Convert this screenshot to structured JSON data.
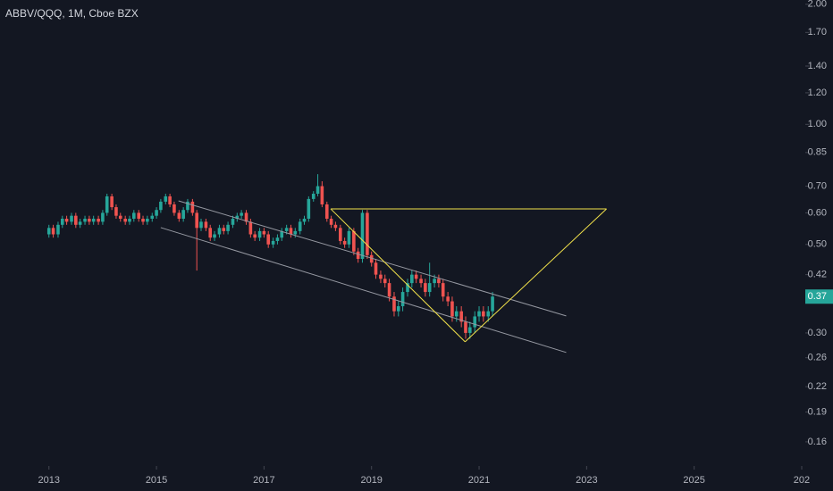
{
  "chart_data": {
    "type": "candlestick",
    "title": "ABBV/QQQ, 1M, Cboe BZX",
    "log_scale": true,
    "grid": false,
    "up_color": "#26a69a",
    "down_color": "#ef5350",
    "x": [
      2013.0,
      2013.08,
      2013.17,
      2013.25,
      2013.33,
      2013.42,
      2013.5,
      2013.58,
      2013.67,
      2013.75,
      2013.83,
      2013.92,
      2014.0,
      2014.08,
      2014.17,
      2014.25,
      2014.33,
      2014.42,
      2014.5,
      2014.58,
      2014.67,
      2014.75,
      2014.83,
      2014.92,
      2015.0,
      2015.08,
      2015.17,
      2015.25,
      2015.33,
      2015.42,
      2015.5,
      2015.58,
      2015.67,
      2015.75,
      2015.83,
      2015.92,
      2016.0,
      2016.08,
      2016.17,
      2016.25,
      2016.33,
      2016.42,
      2016.5,
      2016.58,
      2016.67,
      2016.75,
      2016.83,
      2016.92,
      2017.0,
      2017.08,
      2017.17,
      2017.25,
      2017.33,
      2017.42,
      2017.5,
      2017.58,
      2017.67,
      2017.75,
      2017.83,
      2017.92,
      2018.0,
      2018.08,
      2018.17,
      2018.25,
      2018.33,
      2018.42,
      2018.5,
      2018.58,
      2018.67,
      2018.75,
      2018.83,
      2018.92,
      2019.0,
      2019.08,
      2019.17,
      2019.25,
      2019.33,
      2019.42,
      2019.5,
      2019.58,
      2019.67,
      2019.75,
      2019.83,
      2019.92,
      2020.0,
      2020.08,
      2020.17,
      2020.25,
      2020.33,
      2020.42,
      2020.5,
      2020.58,
      2020.67,
      2020.75,
      2020.83,
      2020.92,
      2021.0,
      2021.08,
      2021.17,
      2021.25
    ],
    "open": [
      0.53,
      0.55,
      0.53,
      0.56,
      0.58,
      0.57,
      0.59,
      0.56,
      0.57,
      0.58,
      0.57,
      0.58,
      0.57,
      0.6,
      0.66,
      0.62,
      0.59,
      0.58,
      0.57,
      0.58,
      0.6,
      0.58,
      0.57,
      0.58,
      0.59,
      0.61,
      0.64,
      0.66,
      0.63,
      0.6,
      0.58,
      0.61,
      0.64,
      0.6,
      0.55,
      0.57,
      0.55,
      0.52,
      0.53,
      0.55,
      0.54,
      0.56,
      0.58,
      0.59,
      0.6,
      0.57,
      0.53,
      0.52,
      0.54,
      0.53,
      0.5,
      0.51,
      0.52,
      0.54,
      0.55,
      0.53,
      0.54,
      0.57,
      0.58,
      0.65,
      0.67,
      0.7,
      0.63,
      0.58,
      0.56,
      0.55,
      0.51,
      0.5,
      0.54,
      0.48,
      0.46,
      0.6,
      0.47,
      0.45,
      0.42,
      0.41,
      0.4,
      0.37,
      0.34,
      0.35,
      0.38,
      0.4,
      0.42,
      0.41,
      0.4,
      0.38,
      0.4,
      0.41,
      0.4,
      0.37,
      0.36,
      0.33,
      0.34,
      0.32,
      0.3,
      0.31,
      0.33,
      0.34,
      0.33,
      0.34
    ],
    "high": [
      0.56,
      0.56,
      0.57,
      0.59,
      0.59,
      0.6,
      0.6,
      0.58,
      0.59,
      0.59,
      0.59,
      0.59,
      0.61,
      0.67,
      0.67,
      0.63,
      0.6,
      0.59,
      0.59,
      0.61,
      0.61,
      0.59,
      0.59,
      0.6,
      0.62,
      0.65,
      0.67,
      0.67,
      0.64,
      0.61,
      0.62,
      0.65,
      0.65,
      0.61,
      0.58,
      0.58,
      0.56,
      0.54,
      0.56,
      0.56,
      0.57,
      0.59,
      0.6,
      0.61,
      0.61,
      0.58,
      0.54,
      0.55,
      0.55,
      0.54,
      0.52,
      0.53,
      0.55,
      0.56,
      0.56,
      0.55,
      0.58,
      0.59,
      0.66,
      0.68,
      0.75,
      0.72,
      0.64,
      0.59,
      0.57,
      0.56,
      0.52,
      0.55,
      0.55,
      0.49,
      0.61,
      0.61,
      0.48,
      0.46,
      0.43,
      0.42,
      0.41,
      0.38,
      0.36,
      0.39,
      0.41,
      0.43,
      0.43,
      0.42,
      0.41,
      0.45,
      0.42,
      0.42,
      0.41,
      0.38,
      0.37,
      0.35,
      0.35,
      0.33,
      0.32,
      0.34,
      0.35,
      0.35,
      0.35,
      0.38
    ],
    "low": [
      0.52,
      0.52,
      0.52,
      0.55,
      0.56,
      0.56,
      0.55,
      0.55,
      0.56,
      0.56,
      0.56,
      0.56,
      0.56,
      0.59,
      0.61,
      0.58,
      0.57,
      0.56,
      0.56,
      0.57,
      0.57,
      0.56,
      0.56,
      0.57,
      0.58,
      0.6,
      0.63,
      0.62,
      0.59,
      0.57,
      0.57,
      0.6,
      0.59,
      0.43,
      0.54,
      0.54,
      0.51,
      0.51,
      0.52,
      0.53,
      0.53,
      0.55,
      0.57,
      0.58,
      0.56,
      0.52,
      0.51,
      0.51,
      0.52,
      0.49,
      0.49,
      0.5,
      0.51,
      0.53,
      0.52,
      0.52,
      0.53,
      0.56,
      0.57,
      0.64,
      0.66,
      0.62,
      0.57,
      0.55,
      0.54,
      0.5,
      0.49,
      0.49,
      0.47,
      0.45,
      0.45,
      0.46,
      0.44,
      0.41,
      0.4,
      0.39,
      0.36,
      0.33,
      0.33,
      0.34,
      0.37,
      0.39,
      0.4,
      0.39,
      0.37,
      0.37,
      0.39,
      0.39,
      0.36,
      0.35,
      0.32,
      0.32,
      0.31,
      0.29,
      0.29,
      0.3,
      0.32,
      0.32,
      0.32,
      0.33
    ],
    "close": [
      0.55,
      0.53,
      0.56,
      0.58,
      0.57,
      0.59,
      0.56,
      0.57,
      0.58,
      0.57,
      0.58,
      0.57,
      0.6,
      0.66,
      0.62,
      0.59,
      0.58,
      0.57,
      0.58,
      0.6,
      0.58,
      0.57,
      0.58,
      0.59,
      0.61,
      0.64,
      0.66,
      0.63,
      0.6,
      0.58,
      0.61,
      0.64,
      0.6,
      0.55,
      0.57,
      0.55,
      0.52,
      0.53,
      0.55,
      0.54,
      0.56,
      0.58,
      0.59,
      0.6,
      0.57,
      0.53,
      0.52,
      0.54,
      0.53,
      0.5,
      0.51,
      0.52,
      0.54,
      0.55,
      0.53,
      0.54,
      0.57,
      0.58,
      0.65,
      0.67,
      0.7,
      0.63,
      0.58,
      0.56,
      0.55,
      0.51,
      0.5,
      0.54,
      0.48,
      0.46,
      0.6,
      0.47,
      0.45,
      0.42,
      0.41,
      0.4,
      0.37,
      0.34,
      0.35,
      0.38,
      0.4,
      0.42,
      0.41,
      0.4,
      0.38,
      0.4,
      0.41,
      0.4,
      0.37,
      0.36,
      0.33,
      0.34,
      0.32,
      0.3,
      0.31,
      0.33,
      0.34,
      0.33,
      0.34,
      0.37
    ],
    "last_price": 0.37,
    "xlim": [
      2012.09,
      2027.05
    ],
    "xticks": [
      2013,
      2015,
      2017,
      2019,
      2021,
      2023,
      2025,
      {
        "value": 2027,
        "label": "202"
      }
    ],
    "ylim": [
      0.1406,
      2.05
    ],
    "yticks": [
      {
        "value": 2,
        "label": "2.00"
      },
      {
        "value": 1.7,
        "label": "1.70"
      },
      {
        "value": 1.4,
        "label": "1.40"
      },
      {
        "value": 1.2,
        "label": "1.20"
      },
      {
        "value": 1,
        "label": "1.00"
      },
      0.85,
      {
        "value": 0.7,
        "label": "0.70"
      },
      {
        "value": 0.6,
        "label": "0.60"
      },
      {
        "value": 0.5,
        "label": "0.50"
      },
      0.42,
      {
        "value": 0.3,
        "label": "0.30"
      },
      0.26,
      0.22,
      0.19,
      0.16
    ],
    "drawings": [
      {
        "color": "#9598a1",
        "points": [
          [
            2015.41,
            0.643
          ],
          [
            2022.62,
            0.331
          ]
        ]
      },
      {
        "color": "#9598a1",
        "points": [
          [
            2015.08,
            0.551
          ],
          [
            2022.62,
            0.268
          ]
        ]
      },
      {
        "color": "#f0e04a",
        "points": [
          [
            2018.24,
            0.614
          ],
          [
            2023.37,
            0.614
          ]
        ]
      },
      {
        "color": "#f0e04a",
        "points": [
          [
            2018.24,
            0.614
          ],
          [
            2020.74,
            0.285
          ]
        ]
      },
      {
        "color": "#f0e04a",
        "points": [
          [
            2020.74,
            0.285
          ],
          [
            2023.37,
            0.614
          ]
        ]
      }
    ]
  }
}
